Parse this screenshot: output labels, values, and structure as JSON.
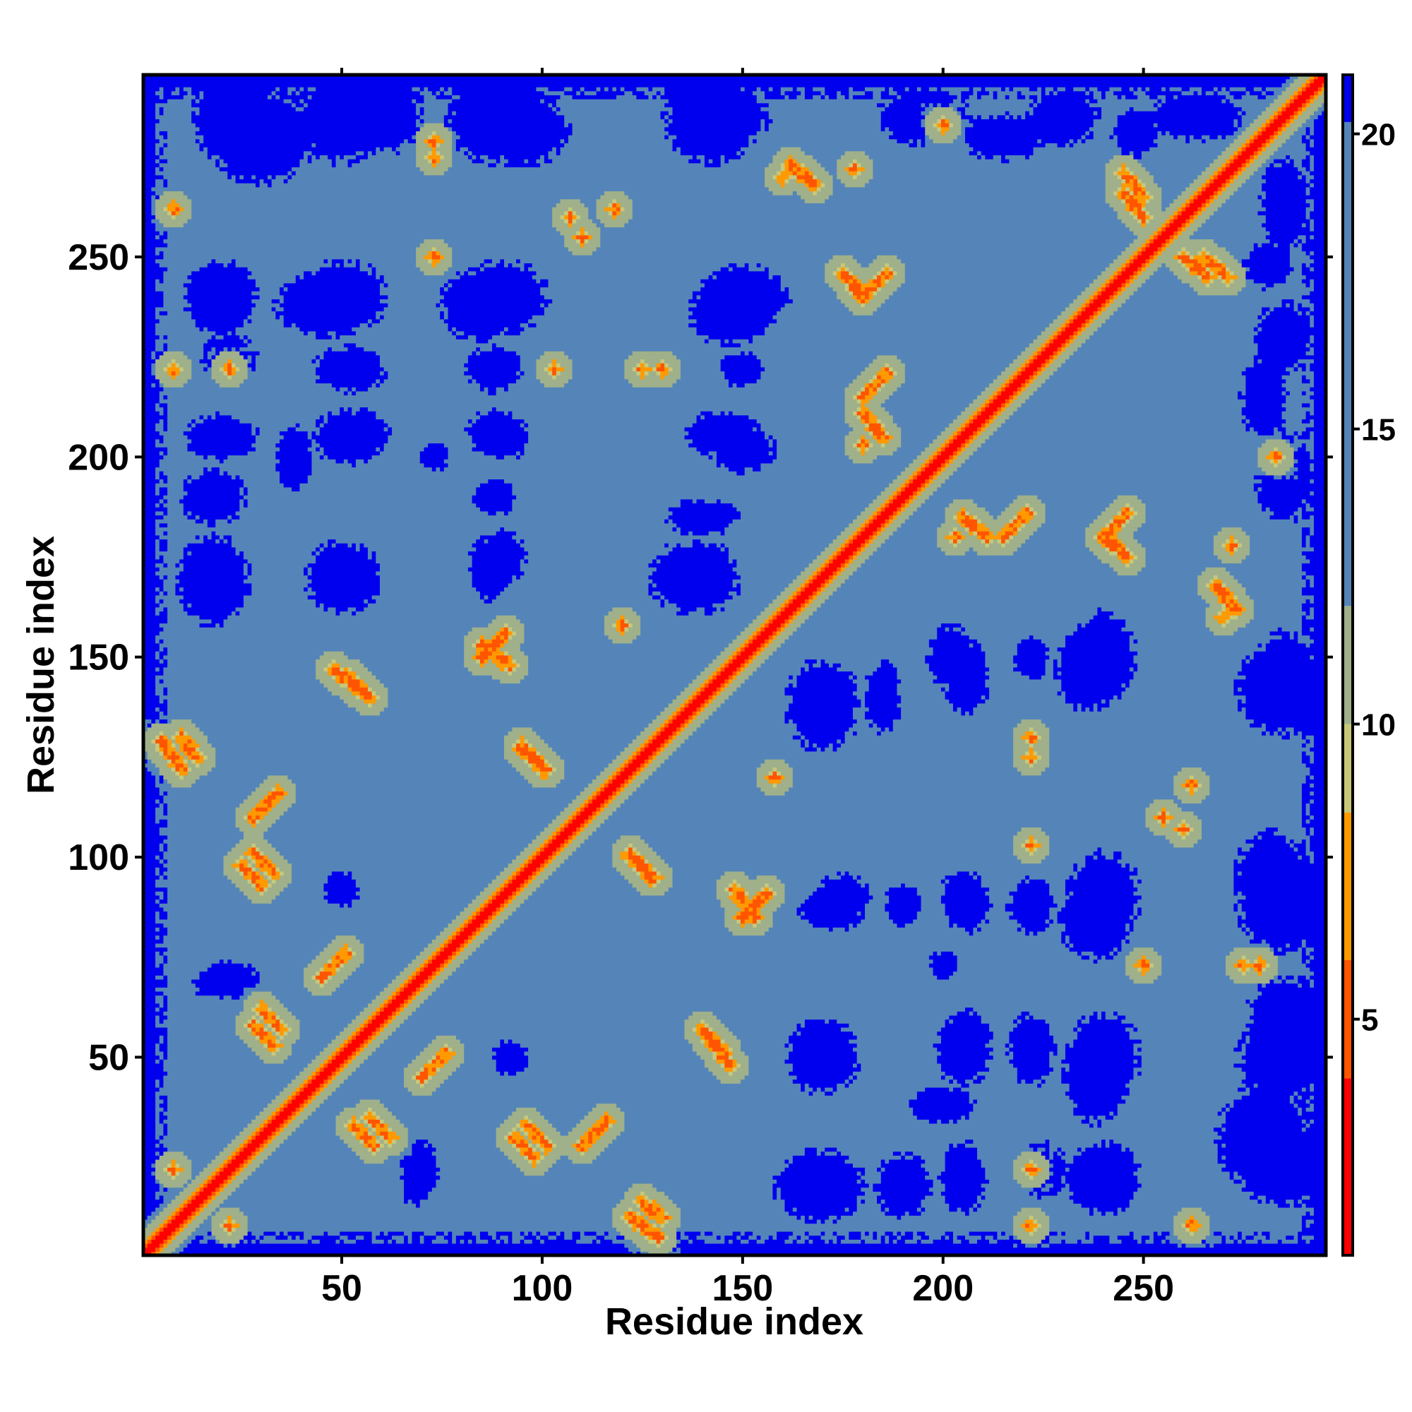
{
  "chart_data": {
    "type": "heatmap",
    "title": "",
    "xlabel": "Residue index",
    "ylabel": "Residue index",
    "n_residues": 295,
    "xlim": [
      1,
      295
    ],
    "ylim": [
      1,
      295
    ],
    "x_ticks": [
      50,
      100,
      150,
      200,
      250
    ],
    "y_ticks": [
      50,
      100,
      150,
      200,
      250
    ],
    "x_tick_labels": [
      "50",
      "100",
      "150",
      "200",
      "250"
    ],
    "y_tick_labels": [
      "50",
      "100",
      "150",
      "200",
      "250"
    ],
    "colorbar": {
      "range": [
        1,
        21
      ],
      "ticks": [
        5,
        10,
        15,
        20
      ],
      "tick_labels": [
        "5",
        "10",
        "15",
        "20"
      ],
      "bands": [
        {
          "min": 1,
          "max": 4,
          "color": "#ff0000"
        },
        {
          "min": 4,
          "max": 6,
          "color": "#ff5500"
        },
        {
          "min": 6,
          "max": 8.5,
          "color": "#ff9900"
        },
        {
          "min": 8.5,
          "max": 10,
          "color": "#c8c87a"
        },
        {
          "min": 10,
          "max": 12,
          "color": "#9fb08a"
        },
        {
          "min": 12,
          "max": 20.2,
          "color": "#5585b8"
        },
        {
          "min": 20.2,
          "max": 21,
          "color": "#0000ee"
        }
      ]
    },
    "description_of_values": "symmetric residue-residue distance map; diagonal ~1, contact segments 4-8, background ~15, far regions >20",
    "contact_segments": [
      {
        "type": "anti",
        "a1": 10,
        "a2": 14,
        "b1": 125,
        "b2": 130
      },
      {
        "type": "anti",
        "a1": 28,
        "a2": 33,
        "b1": 96,
        "b2": 101
      },
      {
        "type": "anti",
        "a1": 30,
        "a2": 35,
        "b1": 57,
        "b2": 62
      },
      {
        "type": "anti",
        "a1": 53,
        "a2": 58,
        "b1": 28,
        "b2": 33
      },
      {
        "type": "anti",
        "a1": 48,
        "a2": 54,
        "b1": 142,
        "b2": 147
      },
      {
        "type": "anti",
        "a1": 93,
        "a2": 98,
        "b1": 25,
        "b2": 30
      },
      {
        "type": "anti",
        "a1": 95,
        "a2": 101,
        "b1": 122,
        "b2": 127
      },
      {
        "type": "anti",
        "a1": 122,
        "a2": 129,
        "b1": 5,
        "b2": 10
      },
      {
        "type": "anti",
        "a1": 122,
        "a2": 128,
        "b1": 95,
        "b2": 100
      },
      {
        "type": "anti",
        "a1": 140,
        "a2": 145,
        "b1": 52,
        "b2": 57
      },
      {
        "type": "anti",
        "a1": 148,
        "a2": 153,
        "b1": 85,
        "b2": 92
      },
      {
        "type": "anti",
        "a1": 175,
        "a2": 180,
        "b1": 240,
        "b2": 246
      },
      {
        "type": "anti",
        "a1": 205,
        "a2": 211,
        "b1": 180,
        "b2": 185
      },
      {
        "type": "anti",
        "a1": 240,
        "a2": 246,
        "b1": 175,
        "b2": 180
      },
      {
        "type": "anti",
        "a1": 260,
        "a2": 266,
        "b1": 245,
        "b2": 250
      },
      {
        "type": "anti",
        "a1": 245,
        "a2": 250,
        "b1": 265,
        "b2": 271
      },
      {
        "type": "anti",
        "a1": 268,
        "a2": 273,
        "b1": 162,
        "b2": 168
      },
      {
        "type": "anti",
        "a1": 162,
        "a2": 168,
        "b1": 268,
        "b2": 273
      },
      {
        "type": "par",
        "a1": 150,
        "a2": 156,
        "b1": 85,
        "b2": 91
      },
      {
        "type": "par",
        "a1": 85,
        "a2": 91,
        "b1": 150,
        "b2": 156
      },
      {
        "type": "par",
        "a1": 215,
        "a2": 221,
        "b1": 180,
        "b2": 186
      },
      {
        "type": "par",
        "a1": 110,
        "a2": 116,
        "b1": 28,
        "b2": 34
      },
      {
        "type": "par",
        "a1": 28,
        "a2": 34,
        "b1": 110,
        "b2": 116
      },
      {
        "type": "par",
        "a1": 240,
        "a2": 246,
        "b1": 180,
        "b2": 186
      },
      {
        "type": "par",
        "a1": 70,
        "a2": 76,
        "b1": 45,
        "b2": 51
      }
    ],
    "contact_spots": [
      {
        "x": 8,
        "y": 262
      },
      {
        "x": 8,
        "y": 222
      },
      {
        "x": 73,
        "y": 279
      },
      {
        "x": 107,
        "y": 260
      },
      {
        "x": 118,
        "y": 262
      },
      {
        "x": 125,
        "y": 222
      },
      {
        "x": 103,
        "y": 222
      },
      {
        "x": 73,
        "y": 250
      },
      {
        "x": 160,
        "y": 270
      },
      {
        "x": 178,
        "y": 272
      },
      {
        "x": 200,
        "y": 283
      },
      {
        "x": 180,
        "y": 203
      },
      {
        "x": 120,
        "y": 158
      },
      {
        "x": 222,
        "y": 130
      },
      {
        "x": 255,
        "y": 110
      },
      {
        "x": 250,
        "y": 73
      },
      {
        "x": 275,
        "y": 73
      },
      {
        "x": 222,
        "y": 22
      },
      {
        "x": 262,
        "y": 8
      },
      {
        "x": 158,
        "y": 120
      },
      {
        "x": 130,
        "y": 222
      },
      {
        "x": 110,
        "y": 255
      },
      {
        "x": 73,
        "y": 250
      },
      {
        "x": 283,
        "y": 200
      },
      {
        "x": 272,
        "y": 178
      },
      {
        "x": 203,
        "y": 180
      },
      {
        "x": 22,
        "y": 222
      },
      {
        "x": 22,
        "y": 8
      }
    ],
    "far_blobs": [
      {
        "x": 20,
        "y": 240,
        "rx": 7,
        "ry": 7
      },
      {
        "x": 45,
        "y": 238,
        "rx": 10,
        "ry": 7
      },
      {
        "x": 85,
        "y": 238,
        "rx": 9,
        "ry": 8
      },
      {
        "x": 147,
        "y": 236,
        "rx": 9,
        "ry": 7
      },
      {
        "x": 55,
        "y": 206,
        "rx": 6,
        "ry": 5
      },
      {
        "x": 88,
        "y": 206,
        "rx": 6,
        "ry": 5
      },
      {
        "x": 145,
        "y": 206,
        "rx": 8,
        "ry": 5
      },
      {
        "x": 18,
        "y": 190,
        "rx": 7,
        "ry": 6
      },
      {
        "x": 18,
        "y": 168,
        "rx": 7,
        "ry": 9
      },
      {
        "x": 50,
        "y": 170,
        "rx": 8,
        "ry": 8
      },
      {
        "x": 87,
        "y": 172,
        "rx": 5,
        "ry": 7
      },
      {
        "x": 88,
        "y": 190,
        "rx": 5,
        "ry": 4
      },
      {
        "x": 38,
        "y": 198,
        "rx": 4,
        "ry": 5
      },
      {
        "x": 140,
        "y": 185,
        "rx": 8,
        "ry": 4
      },
      {
        "x": 138,
        "y": 170,
        "rx": 10,
        "ry": 8
      },
      {
        "x": 20,
        "y": 68,
        "rx": 6,
        "ry": 3
      },
      {
        "x": 240,
        "y": 150,
        "rx": 7,
        "ry": 10
      },
      {
        "x": 202,
        "y": 150,
        "rx": 5,
        "ry": 7
      },
      {
        "x": 222,
        "y": 150,
        "rx": 4,
        "ry": 5
      },
      {
        "x": 285,
        "y": 142,
        "rx": 10,
        "ry": 10
      },
      {
        "x": 240,
        "y": 90,
        "rx": 8,
        "ry": 10
      },
      {
        "x": 205,
        "y": 90,
        "rx": 5,
        "ry": 6
      },
      {
        "x": 222,
        "y": 88,
        "rx": 5,
        "ry": 6
      },
      {
        "x": 175,
        "y": 90,
        "rx": 6,
        "ry": 5
      },
      {
        "x": 285,
        "y": 88,
        "rx": 10,
        "ry": 10
      },
      {
        "x": 240,
        "y": 50,
        "rx": 8,
        "ry": 10
      },
      {
        "x": 205,
        "y": 52,
        "rx": 6,
        "ry": 8
      },
      {
        "x": 222,
        "y": 52,
        "rx": 5,
        "ry": 8
      },
      {
        "x": 170,
        "y": 52,
        "rx": 7,
        "ry": 7
      },
      {
        "x": 285,
        "y": 50,
        "rx": 10,
        "ry": 9
      },
      {
        "x": 240,
        "y": 20,
        "rx": 8,
        "ry": 8
      },
      {
        "x": 205,
        "y": 20,
        "rx": 5,
        "ry": 8
      },
      {
        "x": 225,
        "y": 22,
        "rx": 5,
        "ry": 6
      },
      {
        "x": 170,
        "y": 18,
        "rx": 9,
        "ry": 8
      },
      {
        "x": 285,
        "y": 22,
        "rx": 10,
        "ry": 8
      },
      {
        "x": 200,
        "y": 38,
        "rx": 7,
        "ry": 4
      },
      {
        "x": 200,
        "y": 73,
        "rx": 3,
        "ry": 3
      },
      {
        "x": 92,
        "y": 50,
        "rx": 4,
        "ry": 4
      },
      {
        "x": 70,
        "y": 22,
        "rx": 4,
        "ry": 6
      },
      {
        "x": 285,
        "y": 195,
        "rx": 6,
        "ry": 10
      },
      {
        "x": 285,
        "y": 230,
        "rx": 6,
        "ry": 8
      },
      {
        "x": 285,
        "y": 263,
        "rx": 5,
        "ry": 10
      },
      {
        "x": 215,
        "y": 280,
        "rx": 9,
        "ry": 5
      },
      {
        "x": 248,
        "y": 281,
        "rx": 5,
        "ry": 5
      },
      {
        "x": 30,
        "y": 280,
        "rx": 12,
        "ry": 10
      },
      {
        "x": 60,
        "y": 285,
        "rx": 9,
        "ry": 8
      },
      {
        "x": 95,
        "y": 282,
        "rx": 10,
        "ry": 8
      },
      {
        "x": 145,
        "y": 285,
        "rx": 10,
        "ry": 7
      }
    ]
  }
}
